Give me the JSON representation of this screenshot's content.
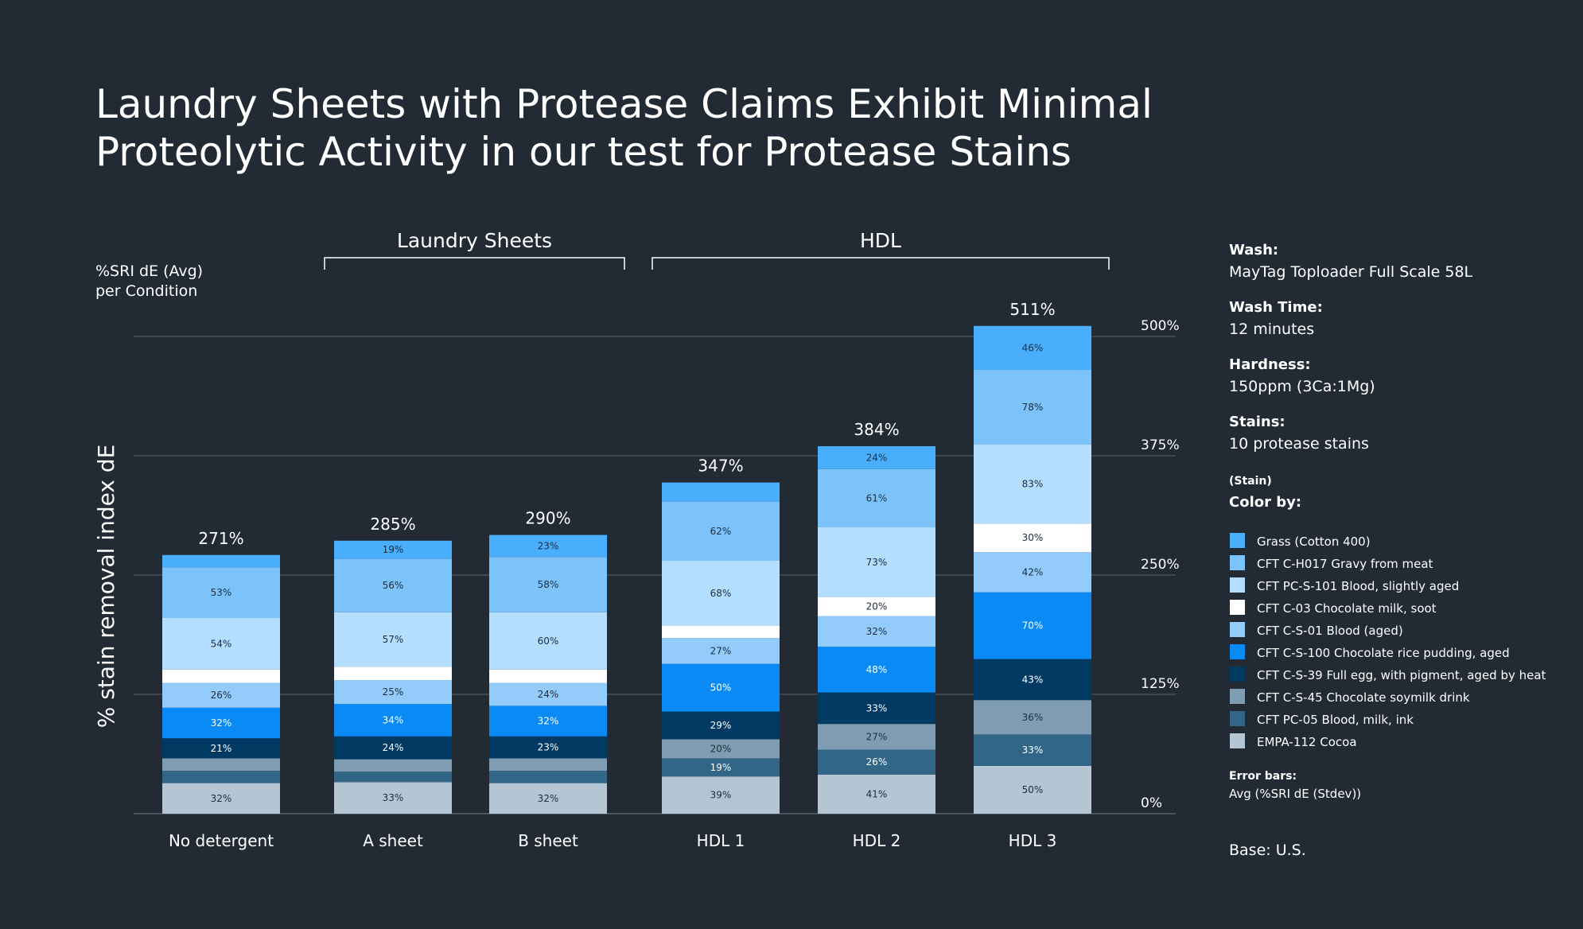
{
  "title_lines": [
    "Laundry Sheets with Protease Claims Exhibit Minimal",
    "Proteolytic Activity in our test for Protease Stains"
  ],
  "groups": [
    {
      "label": "Laundry Sheets",
      "from": 1,
      "to": 2
    },
    {
      "label": "HDL",
      "from": 3,
      "to": 5
    }
  ],
  "ylabel_top": [
    "%SRI dE (Avg)",
    "per Condition"
  ],
  "ylabel": "% stain removal index dE",
  "info": [
    {
      "label": "Wash:",
      "value": "MayTag Toploader Full Scale 58L"
    },
    {
      "label": "Wash Time:",
      "value": "12 minutes"
    },
    {
      "label": "Hardness:",
      "value": "150ppm (3Ca:1Mg)"
    },
    {
      "label": "Stains:",
      "value": "10 protease stains"
    }
  ],
  "color_by_small": "(Stain)",
  "color_by_label": "Color by:",
  "error_bars_label": "Error bars:",
  "error_bars_value": "Avg (%SRI dE (Stdev))",
  "base_note": "Base: U.S.",
  "colors": {
    "background": "#222a33",
    "gridline": "#5a636d",
    "text": "#ffffff"
  },
  "chart_data": {
    "type": "bar",
    "stacked": true,
    "categories": [
      "No detergent",
      "A sheet",
      "B sheet",
      "HDL 1",
      "HDL 2",
      "HDL 3"
    ],
    "totals": [
      "271%",
      "285%",
      "290%",
      "347%",
      "384%",
      "511%"
    ],
    "yticks": [
      {
        "value": 0,
        "label": "0%"
      },
      {
        "value": 125,
        "label": "125%"
      },
      {
        "value": 250,
        "label": "250%"
      },
      {
        "value": 375,
        "label": "375%"
      },
      {
        "value": 500,
        "label": "500%"
      }
    ],
    "ylim": [
      0,
      520
    ],
    "series": [
      {
        "name": "EMPA-112 Cocoa",
        "color": "#b4c6d4",
        "values": [
          32,
          33,
          32,
          39,
          41,
          50
        ],
        "labels": [
          "32%",
          "33%",
          "32%",
          "39%",
          "41%",
          "50%"
        ]
      },
      {
        "name": "CFT PC-05 Blood, milk, ink",
        "color": "#326687",
        "values": [
          13,
          11,
          13,
          19,
          26,
          33
        ],
        "labels": [
          "",
          "",
          "",
          "19%",
          "26%",
          "33%"
        ]
      },
      {
        "name": "CFT C-S-45 Chocolate soymilk drink",
        "color": "#7f9db2",
        "values": [
          13,
          13,
          13,
          20,
          27,
          36
        ],
        "labels": [
          "",
          "",
          "",
          "20%",
          "27%",
          "36%"
        ]
      },
      {
        "name": "CFT C-S-39 Full egg, with pigment, aged by heat",
        "color": "#003a63",
        "values": [
          21,
          24,
          23,
          29,
          33,
          43
        ],
        "labels": [
          "21%",
          "24%",
          "23%",
          "29%",
          "33%",
          "43%"
        ]
      },
      {
        "name": "CFT C-S-100 Chocolate rice pudding, aged",
        "color": "#0a8af5",
        "values": [
          32,
          34,
          32,
          50,
          48,
          70
        ],
        "labels": [
          "32%",
          "34%",
          "32%",
          "50%",
          "48%",
          "70%"
        ]
      },
      {
        "name": "CFT C-S-01 Blood (aged)",
        "color": "#93ccfb",
        "values": [
          26,
          25,
          24,
          27,
          32,
          42
        ],
        "labels": [
          "26%",
          "25%",
          "24%",
          "27%",
          "32%",
          "42%"
        ]
      },
      {
        "name": "CFT C-03 Chocolate milk, soot",
        "color": "#ffffff",
        "values": [
          14,
          14,
          14,
          13,
          20,
          30
        ],
        "labels": [
          "",
          "",
          "",
          "",
          "20%",
          "30%"
        ]
      },
      {
        "name": "CFT PC-S-101 Blood, slightly aged",
        "color": "#b4deff",
        "values": [
          54,
          57,
          60,
          68,
          73,
          83
        ],
        "labels": [
          "54%",
          "57%",
          "60%",
          "68%",
          "73%",
          "83%"
        ]
      },
      {
        "name": "CFT C-H017 Gravy from meat",
        "color": "#7cc3fc",
        "values": [
          53,
          56,
          58,
          62,
          61,
          78
        ],
        "labels": [
          "53%",
          "56%",
          "58%",
          "62%",
          "61%",
          "78%"
        ]
      },
      {
        "name": "Grass (Cotton 400)",
        "color": "#49aefb",
        "values": [
          13,
          19,
          23,
          20,
          24,
          46
        ],
        "labels": [
          "",
          "19%",
          "23%",
          "",
          "24%",
          "46%"
        ]
      }
    ],
    "legend_order": [
      "Grass (Cotton 400)",
      "CFT C-H017 Gravy from meat",
      "CFT PC-S-101 Blood, slightly aged",
      "CFT C-03 Chocolate milk, soot",
      "CFT C-S-01 Blood (aged)",
      "CFT C-S-100 Chocolate rice pudding, aged",
      "CFT C-S-39 Full egg, with pigment, aged by heat",
      "CFT C-S-45 Chocolate soymilk drink",
      "CFT PC-05 Blood, milk, ink",
      "EMPA-112 Cocoa"
    ]
  }
}
